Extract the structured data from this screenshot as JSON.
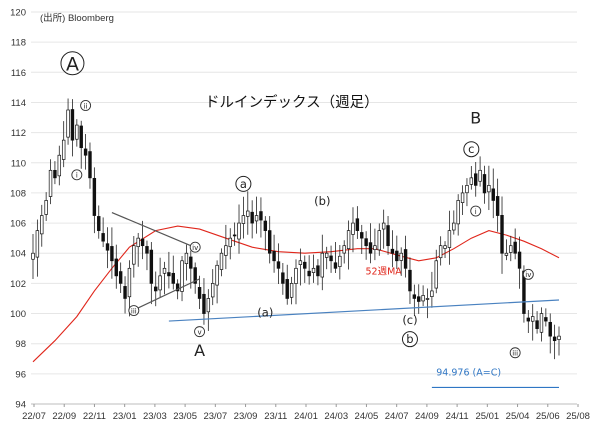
{
  "chart_data": {
    "type": "candlestick",
    "title": "ドルインデックス（週足）",
    "source": "(出所) Bloomberg",
    "ylim": [
      94,
      120
    ],
    "yticks": [
      94,
      96,
      98,
      100,
      102,
      104,
      106,
      108,
      110,
      112,
      114,
      116,
      118,
      120
    ],
    "xticks": [
      "22/07",
      "22/09",
      "22/11",
      "23/01",
      "23/03",
      "23/05",
      "23/07",
      "23/09",
      "23/11",
      "24/01",
      "24/03",
      "24/05",
      "24/07",
      "24/09",
      "24/11",
      "25/01",
      "25/04",
      "25/06",
      "25/08"
    ],
    "close_path": [
      [
        0,
        104
      ],
      [
        1,
        105.5
      ],
      [
        2,
        106.5
      ],
      [
        3,
        107.5
      ],
      [
        4,
        109.5
      ],
      [
        5,
        109
      ],
      [
        6,
        110.5
      ],
      [
        7,
        111.5
      ],
      [
        8,
        113.5
      ],
      [
        9,
        111.5
      ],
      [
        10,
        112.5
      ],
      [
        11,
        111
      ],
      [
        12,
        110.5
      ],
      [
        13,
        109
      ],
      [
        14,
        106.5
      ],
      [
        15,
        105.5
      ],
      [
        16,
        104.8
      ],
      [
        17,
        104.2
      ],
      [
        18,
        103.5
      ],
      [
        19,
        102.5
      ],
      [
        20,
        102
      ],
      [
        21,
        101
      ],
      [
        22,
        103
      ],
      [
        23,
        104.5
      ],
      [
        24,
        105
      ],
      [
        25,
        104.5
      ],
      [
        26,
        104
      ],
      [
        27,
        102
      ],
      [
        28,
        101.5
      ],
      [
        29,
        102.5
      ],
      [
        30,
        103
      ],
      [
        31,
        102.5
      ],
      [
        32,
        102
      ],
      [
        33,
        101.5
      ],
      [
        34,
        103.5
      ],
      [
        35,
        104
      ],
      [
        36,
        103
      ],
      [
        37,
        102
      ],
      [
        38,
        101
      ],
      [
        39,
        100
      ],
      [
        40,
        101
      ],
      [
        41,
        102
      ],
      [
        42,
        103.2
      ],
      [
        43,
        104
      ],
      [
        44,
        104.5
      ],
      [
        45,
        105
      ],
      [
        46,
        105.2
      ],
      [
        47,
        106
      ],
      [
        48,
        106.5
      ],
      [
        49,
        106.8
      ],
      [
        50,
        106
      ],
      [
        51,
        106.5
      ],
      [
        52,
        106.2
      ],
      [
        53,
        105.5
      ],
      [
        54,
        104
      ],
      [
        55,
        103.5
      ],
      [
        56,
        103
      ],
      [
        57,
        102
      ],
      [
        58,
        101
      ],
      [
        59,
        102
      ],
      [
        60,
        103
      ],
      [
        61,
        103.5
      ],
      [
        62,
        103
      ],
      [
        63,
        102.5
      ],
      [
        64,
        103
      ],
      [
        65,
        102.5
      ],
      [
        66,
        104
      ],
      [
        67,
        104
      ],
      [
        68,
        103.5
      ],
      [
        69,
        103
      ],
      [
        70,
        103.8
      ],
      [
        71,
        104.5
      ],
      [
        72,
        105.5
      ],
      [
        73,
        106
      ],
      [
        74,
        105.5
      ],
      [
        75,
        105
      ],
      [
        76,
        104.5
      ],
      [
        77,
        104
      ],
      [
        78,
        104.5
      ],
      [
        79,
        105.5
      ],
      [
        80,
        106
      ],
      [
        81,
        104.5
      ],
      [
        82,
        104
      ],
      [
        83,
        103.5
      ],
      [
        84,
        104
      ],
      [
        85,
        103
      ],
      [
        86,
        101.5
      ],
      [
        87,
        101
      ],
      [
        88,
        100.8
      ],
      [
        89,
        101.2
      ],
      [
        90,
        101
      ],
      [
        91,
        101.5
      ],
      [
        92,
        103.5
      ],
      [
        93,
        104.5
      ],
      [
        94,
        104.5
      ],
      [
        95,
        105.5
      ],
      [
        96,
        106
      ],
      [
        97,
        107.5
      ],
      [
        98,
        108
      ],
      [
        99,
        108.5
      ],
      [
        100,
        109
      ],
      [
        101,
        108.5
      ],
      [
        102,
        109.5
      ],
      [
        103,
        108
      ],
      [
        104,
        108.5
      ],
      [
        105,
        107.5
      ],
      [
        106,
        106.5
      ],
      [
        107,
        104
      ],
      [
        108,
        104
      ],
      [
        109,
        104.5
      ],
      [
        110,
        104
      ],
      [
        111,
        103
      ],
      [
        112,
        100
      ],
      [
        113,
        99.5
      ],
      [
        114,
        99.8
      ],
      [
        115,
        99
      ],
      [
        116,
        100
      ],
      [
        117,
        99.5
      ],
      [
        118,
        98.5
      ],
      [
        119,
        98.2
      ],
      [
        120,
        98.5
      ]
    ],
    "series": [
      {
        "name": "52週MA",
        "color": "#e0261b",
        "label_at": [
          80,
          102.6
        ],
        "points": [
          [
            0,
            96.8
          ],
          [
            5,
            98.2
          ],
          [
            10,
            99.8
          ],
          [
            14,
            101.5
          ],
          [
            18,
            103
          ],
          [
            22,
            104.4
          ],
          [
            28,
            105.5
          ],
          [
            33,
            105.8
          ],
          [
            38,
            105.6
          ],
          [
            44,
            105
          ],
          [
            50,
            104.4
          ],
          [
            56,
            104.1
          ],
          [
            62,
            104
          ],
          [
            68,
            104.1
          ],
          [
            74,
            104.3
          ],
          [
            78,
            104.3
          ],
          [
            84,
            103.8
          ],
          [
            88,
            103.5
          ],
          [
            92,
            103.7
          ],
          [
            96,
            104.3
          ],
          [
            100,
            105
          ],
          [
            104,
            105.5
          ],
          [
            108,
            105.2
          ],
          [
            112,
            104.8
          ],
          [
            116,
            104.3
          ],
          [
            120,
            103.7
          ]
        ]
      }
    ],
    "trendlines": [
      {
        "color": "#555555",
        "points": [
          [
            18,
            106.7
          ],
          [
            36,
            104.5
          ]
        ]
      },
      {
        "color": "#555555",
        "points": [
          [
            22,
            100.1
          ],
          [
            38,
            102.3
          ]
        ]
      },
      {
        "color": "#4a82c0",
        "points": [
          [
            31,
            99.5
          ],
          [
            120,
            100.9
          ]
        ]
      },
      {
        "color": "#2f76c4",
        "points": [
          [
            91,
            95.1
          ],
          [
            120,
            95.1
          ]
        ]
      }
    ],
    "annotations": [
      {
        "label": "A",
        "style": "circle-large",
        "x": 9,
        "y": 116.6
      },
      {
        "label": "a",
        "style": "circle",
        "x": 48,
        "y": 108.6
      },
      {
        "label": "(b)",
        "style": "text",
        "x": 66,
        "y": 107.2
      },
      {
        "label": "B",
        "style": "text-large",
        "x": 101,
        "y": 112.6
      },
      {
        "label": "c",
        "style": "circle",
        "x": 100,
        "y": 110.9
      },
      {
        "label": "(a)",
        "style": "text",
        "x": 53,
        "y": 99.8
      },
      {
        "label": "(c)",
        "style": "text",
        "x": 86,
        "y": 99.3
      },
      {
        "label": "b",
        "style": "circle",
        "x": 86,
        "y": 98.3
      },
      {
        "label": "v",
        "style": "circle-small",
        "x": 38,
        "y": 98.8
      },
      {
        "label": "A",
        "style": "text-large",
        "x": 38,
        "y": 97.2
      },
      {
        "label": "i",
        "style": "circle-small",
        "x": 10,
        "y": 109.2
      },
      {
        "label": "ii",
        "style": "circle-small",
        "x": 12,
        "y": 113.8
      },
      {
        "label": "i",
        "style": "circle-small",
        "x": 101,
        "y": 106.8
      },
      {
        "label": "iv",
        "style": "circle-small",
        "x": 37,
        "y": 104.4
      },
      {
        "label": "iii",
        "style": "circle-small",
        "x": 23,
        "y": 100.2
      },
      {
        "label": "iv",
        "style": "circle-small",
        "x": 113,
        "y": 102.6
      },
      {
        "label": "iii",
        "style": "circle-small",
        "x": 110,
        "y": 97.4
      },
      {
        "label": "94.976 (A=C)",
        "style": "target",
        "x": 92,
        "y": 95.9
      }
    ]
  }
}
